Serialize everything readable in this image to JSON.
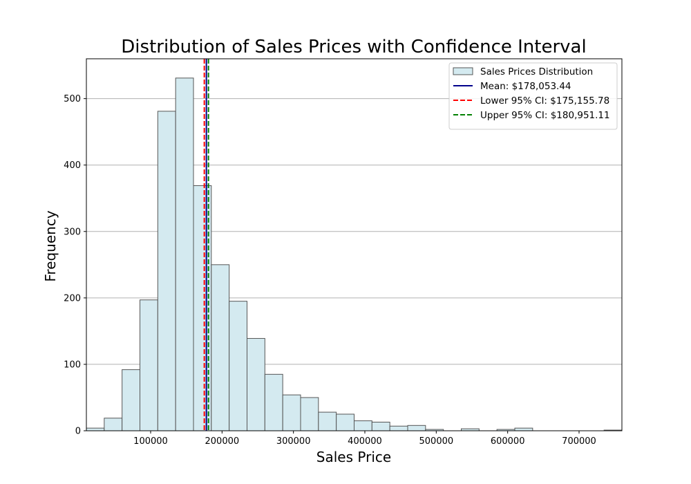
{
  "chart_data": {
    "type": "bar",
    "title": "Distribution of Sales Prices with Confidence Interval",
    "xlabel": "Sales Price",
    "ylabel": "Frequency",
    "xlim": [
      10000,
      760000
    ],
    "ylim": [
      0,
      560
    ],
    "xticks": [
      100000,
      200000,
      300000,
      400000,
      500000,
      600000,
      700000
    ],
    "yticks": [
      0,
      100,
      200,
      300,
      400,
      500
    ],
    "grid": "y",
    "legend_position": "top-right",
    "series": [
      {
        "name": "Sales Prices Distribution",
        "kind": "histogram",
        "bin_start": 10000,
        "bin_width": 25000,
        "counts": [
          4,
          19,
          92,
          197,
          481,
          531,
          369,
          250,
          195,
          139,
          85,
          54,
          50,
          28,
          25,
          15,
          13,
          7,
          8,
          2,
          0,
          3,
          0,
          2,
          4,
          0,
          0,
          0,
          0,
          1
        ],
        "fill": "#d4eaf0",
        "edge": "#555555"
      },
      {
        "name": "Mean: $178,053.44",
        "kind": "vline",
        "x": 178053.44,
        "color": "#00008b",
        "style": "solid"
      },
      {
        "name": "Lower 95% CI: $175,155.78",
        "kind": "vline",
        "x": 175155.78,
        "color": "#ff0000",
        "style": "dashed"
      },
      {
        "name": "Upper 95% CI: $180,951.11",
        "kind": "vline",
        "x": 180951.11,
        "color": "#008000",
        "style": "dashed"
      }
    ]
  }
}
